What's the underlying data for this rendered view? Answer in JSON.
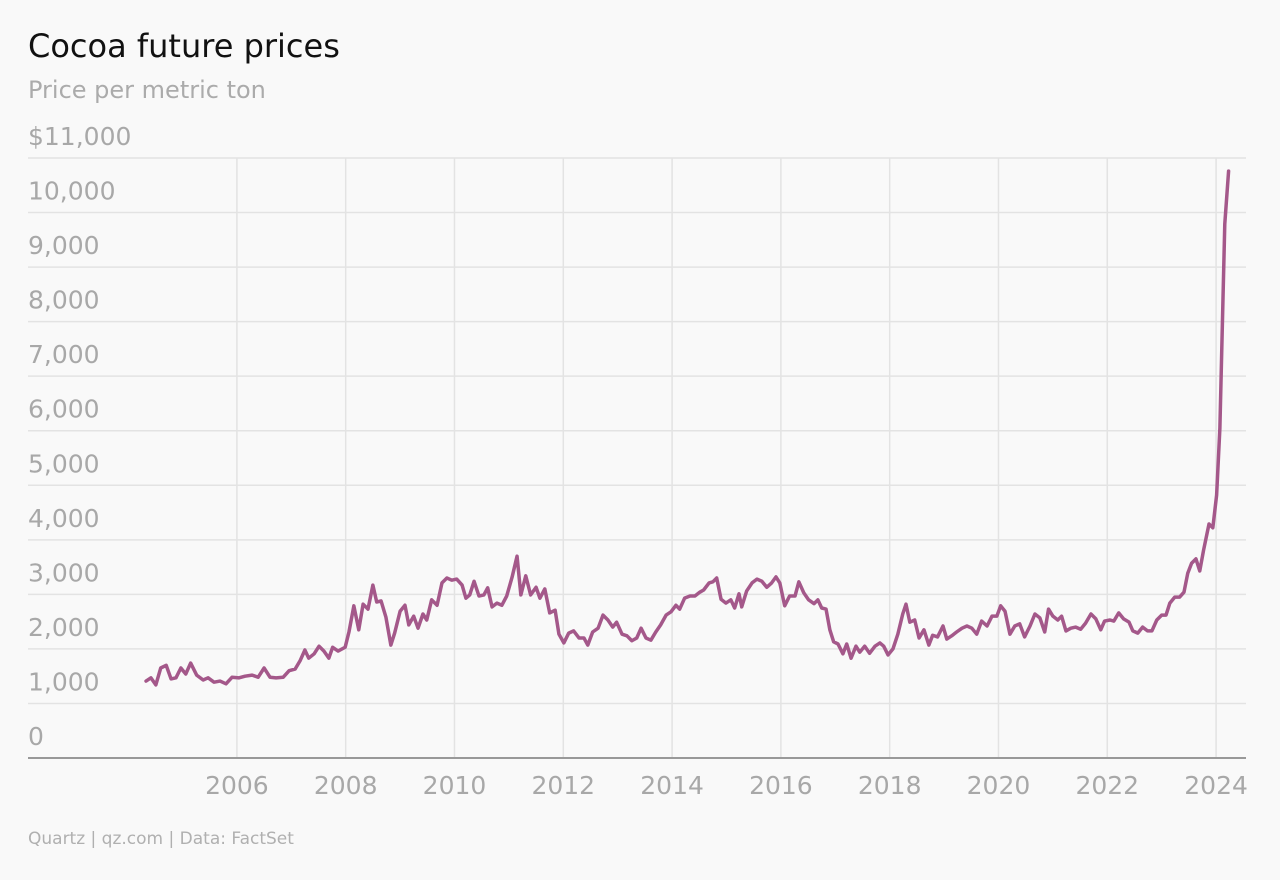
{
  "chart_data": {
    "type": "line",
    "title": "Cocoa future prices",
    "subtitle": "Price per metric ton",
    "source": "Quartz | qz.com | Data: FactSet",
    "color": "#a4588a",
    "grid": true,
    "xlim": [
      2002.16,
      2024.55
    ],
    "ylim": [
      0,
      11000
    ],
    "xticks": [
      2006,
      2008,
      2010,
      2012,
      2014,
      2016,
      2018,
      2020,
      2022,
      2024
    ],
    "yticks": [
      0,
      {
        "value": 1000,
        "label": "1,000"
      },
      {
        "value": 2000,
        "label": "2,000"
      },
      {
        "value": 3000,
        "label": "3,000"
      },
      {
        "value": 4000,
        "label": "4,000"
      },
      {
        "value": 5000,
        "label": "5,000"
      },
      {
        "value": 6000,
        "label": "6,000"
      },
      {
        "value": 7000,
        "label": "7,000"
      },
      {
        "value": 8000,
        "label": "8,000"
      },
      {
        "value": 9000,
        "label": "9,000"
      },
      {
        "value": 10000,
        "label": "10,000"
      },
      {
        "value": 11000,
        "label": "$11,000"
      }
    ],
    "x": [
      2004.33,
      2004.42,
      2004.51,
      2004.6,
      2004.7,
      2004.79,
      2004.88,
      2004.97,
      2005.06,
      2005.15,
      2005.26,
      2005.38,
      2005.47,
      2005.58,
      2005.69,
      2005.8,
      2005.91,
      2006.04,
      2006.15,
      2006.28,
      2006.39,
      2006.5,
      2006.61,
      2006.72,
      2006.85,
      2006.96,
      2007.07,
      2007.16,
      2007.25,
      2007.32,
      2007.42,
      2007.51,
      2007.6,
      2007.69,
      2007.76,
      2007.86,
      2007.99,
      2008.06,
      2008.15,
      2008.24,
      2008.32,
      2008.41,
      2008.5,
      2008.57,
      2008.65,
      2008.74,
      2008.83,
      2008.9,
      2009.0,
      2009.09,
      2009.16,
      2009.25,
      2009.33,
      2009.42,
      2009.49,
      2009.58,
      2009.68,
      2009.77,
      2009.86,
      2009.95,
      2010.04,
      2010.14,
      2010.21,
      2010.28,
      2010.36,
      2010.45,
      2010.54,
      2010.61,
      2010.69,
      2010.78,
      2010.87,
      2010.96,
      2011.06,
      2011.15,
      2011.22,
      2011.31,
      2011.4,
      2011.5,
      2011.57,
      2011.66,
      2011.75,
      2011.85,
      2011.92,
      2012.01,
      2012.1,
      2012.19,
      2012.29,
      2012.38,
      2012.45,
      2012.54,
      2012.64,
      2012.73,
      2012.82,
      2012.91,
      2012.98,
      2013.08,
      2013.17,
      2013.26,
      2013.35,
      2013.43,
      2013.52,
      2013.61,
      2013.7,
      2013.79,
      2013.89,
      2013.98,
      2014.07,
      2014.14,
      2014.23,
      2014.33,
      2014.42,
      2014.51,
      2014.58,
      2014.68,
      2014.75,
      2014.82,
      2014.9,
      2014.99,
      2015.08,
      2015.15,
      2015.23,
      2015.28,
      2015.37,
      2015.47,
      2015.56,
      2015.65,
      2015.74,
      2015.83,
      2015.91,
      2015.98,
      2016.07,
      2016.16,
      2016.26,
      2016.33,
      2016.42,
      2016.51,
      2016.61,
      2016.68,
      2016.75,
      2016.83,
      2016.9,
      2016.97,
      2017.05,
      2017.14,
      2017.21,
      2017.29,
      2017.38,
      2017.45,
      2017.54,
      2017.63,
      2017.73,
      2017.82,
      2017.89,
      2017.97,
      2018.06,
      2018.15,
      2018.24,
      2018.3,
      2018.37,
      2018.46,
      2018.54,
      2018.63,
      2018.72,
      2018.79,
      2018.88,
      2018.98,
      2019.05,
      2019.14,
      2019.23,
      2019.33,
      2019.42,
      2019.51,
      2019.6,
      2019.69,
      2019.79,
      2019.88,
      2019.97,
      2020.04,
      2020.12,
      2020.21,
      2020.3,
      2020.39,
      2020.48,
      2020.58,
      2020.67,
      2020.76,
      2020.85,
      2020.92,
      2021.0,
      2021.09,
      2021.16,
      2021.24,
      2021.33,
      2021.42,
      2021.51,
      2021.6,
      2021.7,
      2021.79,
      2021.88,
      2021.95,
      2022.05,
      2022.12,
      2022.21,
      2022.3,
      2022.4,
      2022.47,
      2022.56,
      2022.65,
      2022.74,
      2022.82,
      2022.91,
      2023.0,
      2023.08,
      2023.15,
      2023.24,
      2023.33,
      2023.41,
      2023.48,
      2023.55,
      2023.63,
      2023.7,
      2023.77,
      2023.87,
      2023.94,
      2024.01,
      2024.07,
      2024.16,
      2024.23
    ],
    "values": [
      1410,
      1470,
      1340,
      1650,
      1700,
      1450,
      1470,
      1650,
      1540,
      1740,
      1520,
      1430,
      1470,
      1390,
      1410,
      1360,
      1480,
      1470,
      1500,
      1520,
      1480,
      1650,
      1480,
      1470,
      1480,
      1600,
      1630,
      1780,
      1980,
      1830,
      1910,
      2050,
      1960,
      1830,
      2030,
      1960,
      2030,
      2310,
      2790,
      2350,
      2820,
      2730,
      3170,
      2860,
      2880,
      2580,
      2070,
      2290,
      2690,
      2800,
      2440,
      2600,
      2380,
      2640,
      2530,
      2900,
      2800,
      3210,
      3300,
      3260,
      3280,
      3170,
      2930,
      2990,
      3240,
      2970,
      2990,
      3120,
      2770,
      2840,
      2800,
      2970,
      3320,
      3700,
      2990,
      3340,
      2990,
      3130,
      2930,
      3100,
      2660,
      2710,
      2270,
      2110,
      2290,
      2330,
      2200,
      2200,
      2070,
      2310,
      2380,
      2620,
      2530,
      2400,
      2490,
      2270,
      2240,
      2150,
      2200,
      2380,
      2200,
      2160,
      2310,
      2440,
      2620,
      2680,
      2800,
      2730,
      2930,
      2970,
      2970,
      3040,
      3080,
      3210,
      3230,
      3300,
      2910,
      2840,
      2900,
      2750,
      3010,
      2770,
      3060,
      3210,
      3280,
      3240,
      3130,
      3210,
      3320,
      3210,
      2790,
      2970,
      2970,
      3230,
      3030,
      2900,
      2830,
      2900,
      2750,
      2730,
      2350,
      2130,
      2090,
      1910,
      2090,
      1830,
      2050,
      1940,
      2050,
      1920,
      2050,
      2110,
      2050,
      1890,
      2000,
      2270,
      2640,
      2820,
      2490,
      2530,
      2200,
      2350,
      2070,
      2250,
      2220,
      2420,
      2180,
      2240,
      2310,
      2380,
      2420,
      2380,
      2270,
      2510,
      2420,
      2600,
      2600,
      2790,
      2690,
      2270,
      2420,
      2460,
      2220,
      2420,
      2640,
      2570,
      2310,
      2730,
      2600,
      2530,
      2600,
      2330,
      2380,
      2400,
      2360,
      2470,
      2640,
      2550,
      2350,
      2510,
      2530,
      2510,
      2660,
      2550,
      2490,
      2330,
      2290,
      2400,
      2330,
      2330,
      2530,
      2620,
      2620,
      2840,
      2950,
      2950,
      3040,
      3390,
      3570,
      3650,
      3430,
      3810,
      4290,
      4220,
      4820,
      6050,
      9790,
      10760
    ]
  }
}
